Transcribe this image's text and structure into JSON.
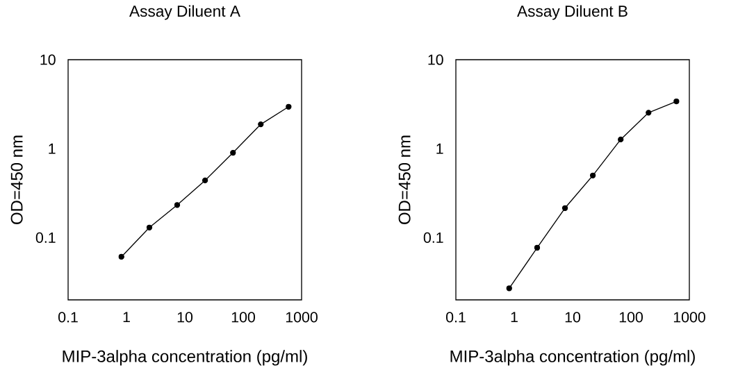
{
  "chart_data": [
    {
      "type": "line",
      "title": "Assay Diluent A",
      "xlabel": "MIP-3alpha concentration (pg/ml)",
      "ylabel": "OD=450 nm",
      "log": "xy",
      "xlim": [
        0.1,
        1000
      ],
      "ylim": [
        0.02,
        10
      ],
      "xticks": [
        0.1,
        1,
        10,
        100,
        1000
      ],
      "yticks": [
        0.1,
        1,
        10
      ],
      "marker": "circle",
      "color": "#000000",
      "x": [
        0.82,
        2.47,
        7.4,
        22.2,
        66.7,
        200,
        600
      ],
      "values": [
        0.061,
        0.13,
        0.233,
        0.44,
        0.9,
        1.88,
        2.96
      ]
    },
    {
      "type": "line",
      "title": "Assay Diluent B",
      "xlabel": "MIP-3alpha concentration (pg/ml)",
      "ylabel": "OD=450 nm",
      "log": "xy",
      "xlim": [
        0.1,
        1000
      ],
      "ylim": [
        0.02,
        10
      ],
      "xticks": [
        0.1,
        1,
        10,
        100,
        1000
      ],
      "yticks": [
        0.1,
        1,
        10
      ],
      "marker": "circle",
      "color": "#000000",
      "x": [
        0.82,
        2.47,
        7.4,
        22.2,
        66.7,
        200,
        600
      ],
      "values": [
        0.027,
        0.077,
        0.215,
        0.5,
        1.27,
        2.54,
        3.4
      ]
    }
  ]
}
